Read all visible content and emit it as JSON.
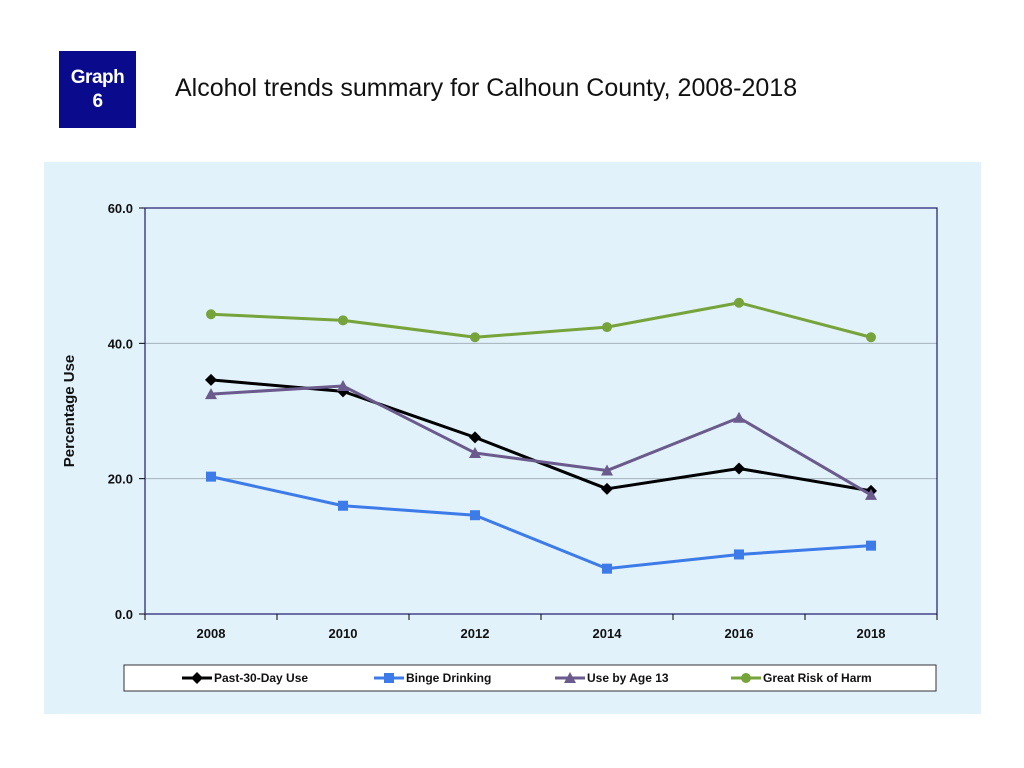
{
  "badge": {
    "line1": "Graph",
    "line2": "6",
    "color": "#0a0a8c"
  },
  "header": {
    "title": "Alcohol trends summary for Calhoun County, 2008-2018"
  },
  "chart_data": {
    "type": "line",
    "title": "Alcohol trends summary for Calhoun County, 2008-2018",
    "xlabel": "",
    "ylabel": "Percentage Use",
    "categories": [
      "2008",
      "2010",
      "2012",
      "2014",
      "2016",
      "2018"
    ],
    "ylim": [
      0,
      60
    ],
    "yticks": [
      "0.0",
      "20.0",
      "40.0",
      "60.0"
    ],
    "ytick_values": [
      0,
      20,
      40,
      60
    ],
    "grid": true,
    "legend_position": "bottom",
    "series": [
      {
        "name": "Past-30-Day Use",
        "color": "#000000",
        "marker": "diamond",
        "values": [
          34.6,
          32.9,
          26.1,
          18.5,
          21.5,
          18.2
        ]
      },
      {
        "name": "Binge Drinking",
        "color": "#3d7be8",
        "marker": "square",
        "values": [
          20.3,
          16.0,
          14.6,
          6.7,
          8.8,
          10.1
        ]
      },
      {
        "name": "Use by Age 13",
        "color": "#6b5a8c",
        "marker": "triangle",
        "values": [
          32.5,
          33.7,
          23.8,
          21.2,
          29.0,
          17.6
        ]
      },
      {
        "name": "Great Risk of Harm",
        "color": "#76a33a",
        "marker": "circle",
        "values": [
          44.3,
          43.4,
          40.9,
          42.4,
          46.0,
          40.9
        ]
      }
    ]
  }
}
